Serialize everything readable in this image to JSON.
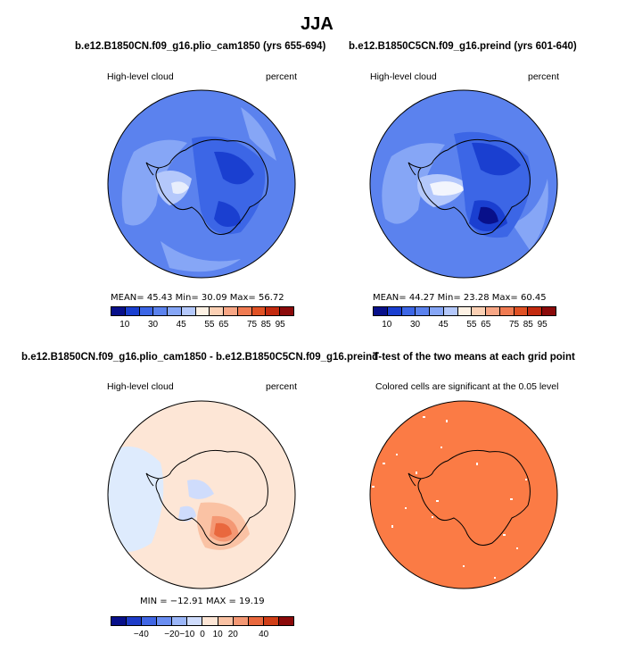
{
  "figure": {
    "title": "JJA"
  },
  "panels": {
    "top_left": {
      "title": "b.e12.B1850CN.f09_g16.plio_cam1850 (yrs 655-694)",
      "left_label": "High-level cloud",
      "right_label": "percent",
      "stats": "MEAN=  45.43  Min=  30.09  Max=  56.72",
      "colorbar_ticks": [
        "10",
        "30",
        "45",
        "55",
        "65",
        "75",
        "85",
        "95"
      ]
    },
    "top_right": {
      "title": "b.e12.B1850C5CN.f09_g16.preind (yrs 601-640)",
      "left_label": "High-level cloud",
      "right_label": "percent",
      "stats": "MEAN=  44.27  Min=  23.28  Max=  60.45",
      "colorbar_ticks": [
        "10",
        "30",
        "45",
        "55",
        "65",
        "75",
        "85",
        "95"
      ]
    },
    "bottom_left": {
      "title": "b.e12.B1850CN.f09_g16.plio_cam1850 - b.e12.B1850C5CN.f09_g16.preind",
      "left_label": "High-level cloud",
      "right_label": "percent",
      "stats": "MIN = −12.91  MAX =  19.19",
      "colorbar_ticks": [
        "−40",
        "−20",
        "−10",
        "0",
        "10",
        "20",
        "40"
      ]
    },
    "bottom_right": {
      "title": "T-test of the two means at each grid point",
      "subtitle": "Colored cells are significant at the 0.05 level"
    }
  },
  "colors": {
    "abs_scale": [
      "#08108a",
      "#1a3fd0",
      "#3c66e6",
      "#5b82ee",
      "#86a6f6",
      "#b4c8fb",
      "#fdf1e4",
      "#fbd0b4",
      "#f7a685",
      "#f07b52",
      "#e05124",
      "#c32a0f",
      "#8b0a0a"
    ],
    "diff_scale": [
      "#08108a",
      "#1e3cc8",
      "#4066e4",
      "#6a8ef2",
      "#9bb6f8",
      "#cfdcfc",
      "#fde6d6",
      "#fac2a4",
      "#f49874",
      "#e9683e",
      "#d03e17",
      "#8b0a0a"
    ],
    "ttest_fill": "#fb7b45"
  },
  "chart_data": [
    {
      "type": "heatmap",
      "projection": "south-polar-stereographic",
      "title": "b.e12.B1850CN.f09_g16.plio_cam1850 (yrs 655-694)",
      "variable": "High-level cloud",
      "units": "percent",
      "contour_levels": [
        10,
        20,
        30,
        35,
        40,
        45,
        50,
        55,
        60,
        65,
        70,
        75,
        80,
        85,
        90,
        95
      ],
      "colorbar_labels": [
        10,
        30,
        45,
        55,
        65,
        75,
        85,
        95
      ],
      "mean": 45.43,
      "min": 30.09,
      "max": 56.72
    },
    {
      "type": "heatmap",
      "projection": "south-polar-stereographic",
      "title": "b.e12.B1850C5CN.f09_g16.preind (yrs 601-640)",
      "variable": "High-level cloud",
      "units": "percent",
      "contour_levels": [
        10,
        20,
        30,
        35,
        40,
        45,
        50,
        55,
        60,
        65,
        70,
        75,
        80,
        85,
        90,
        95
      ],
      "colorbar_labels": [
        10,
        30,
        45,
        55,
        65,
        75,
        85,
        95
      ],
      "mean": 44.27,
      "min": 23.28,
      "max": 60.45
    },
    {
      "type": "heatmap",
      "projection": "south-polar-stereographic",
      "title": "b.e12.B1850CN.f09_g16.plio_cam1850 - b.e12.B1850C5CN.f09_g16.preind",
      "variable": "High-level cloud",
      "units": "percent",
      "contour_levels": [
        -40,
        -30,
        -20,
        -15,
        -10,
        -5,
        0,
        5,
        10,
        15,
        20,
        30,
        40
      ],
      "colorbar_labels": [
        -40,
        -20,
        -10,
        0,
        10,
        20,
        40
      ],
      "min": -12.91,
      "max": 19.19
    },
    {
      "type": "heatmap",
      "projection": "south-polar-stereographic",
      "title": "T-test of the two means at each grid point",
      "subtitle": "Colored cells are significant at the 0.05 level",
      "significance_level": 0.05
    }
  ]
}
